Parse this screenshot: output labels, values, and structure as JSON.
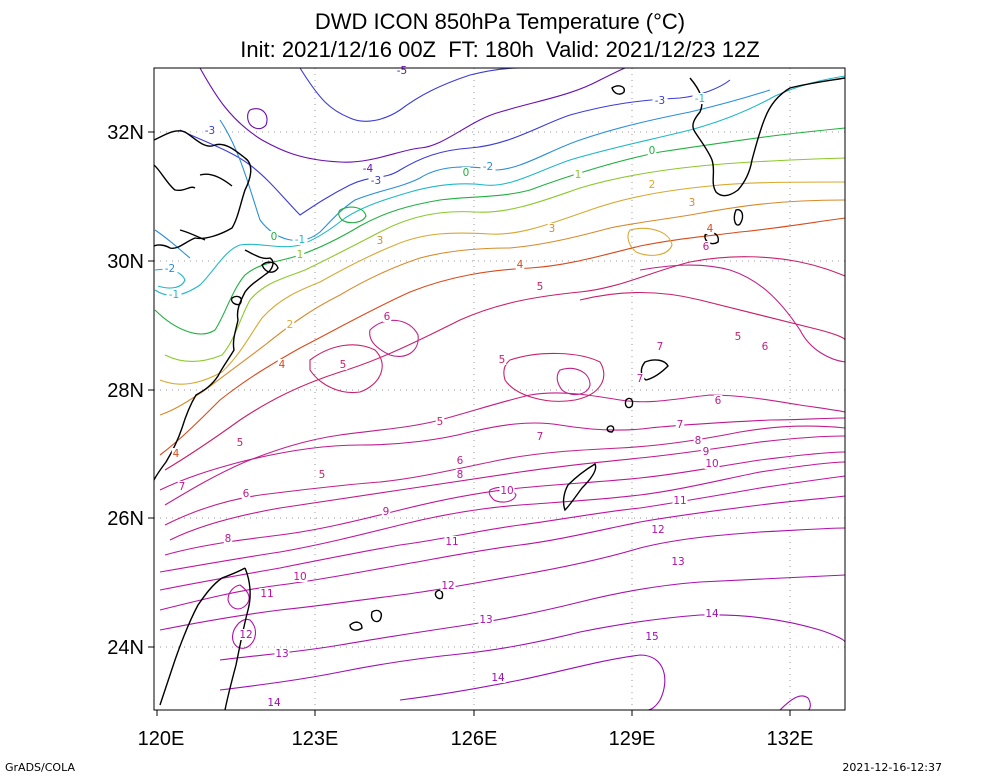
{
  "title_line1": "DWD ICON 850hPa Temperature (°C)",
  "title_line2": "Init: 2021/12/16 00Z  FT: 180h  Valid: 2021/12/23 12Z",
  "footer_left": "GrADS/COLA",
  "footer_right": "2021-12-16-12:37",
  "x_ticks": [
    "120E",
    "123E",
    "126E",
    "129E",
    "132E"
  ],
  "y_ticks": [
    "32N",
    "30N",
    "28N",
    "26N",
    "24N"
  ],
  "contour_levels": [
    -3,
    -2,
    -1,
    0,
    1,
    2,
    3,
    4,
    5,
    6,
    7,
    8,
    9,
    10,
    11,
    12,
    13,
    14,
    15
  ],
  "contour_colors": {
    "-4": "#6a0dad",
    "-3": "#3b3bd6",
    "-2": "#2a8fd8",
    "-1": "#1fb8c8",
    "0": "#20b040",
    "1": "#8cc82a",
    "2": "#d8a830",
    "3": "#d88a2a",
    "4": "#d84a1a",
    "5": "#c8206a",
    "6": "#c0208a",
    "7": "#c01890",
    "8": "#c0169a",
    "9": "#c0149e",
    "10": "#c012a6",
    "11": "#b810a8",
    "12": "#b010ac",
    "13": "#a810b0",
    "14": "#a00eb4",
    "15": "#9a0cb8"
  },
  "contour_labels": [
    {
      "t": "-5",
      "c": "-4"
    },
    {
      "t": "-3",
      "c": "-3"
    },
    {
      "t": "-3",
      "c": "-3"
    },
    {
      "t": "-4",
      "c": "-4"
    },
    {
      "t": "-3",
      "c": "-3"
    },
    {
      "t": "-2",
      "c": "-2"
    },
    {
      "t": "-1",
      "c": "-1"
    },
    {
      "t": "0",
      "c": "0"
    },
    {
      "t": "1",
      "c": "1"
    },
    {
      "t": "2",
      "c": "2"
    },
    {
      "t": "3",
      "c": "3"
    },
    {
      "t": "0",
      "c": "0"
    },
    {
      "t": "-1",
      "c": "-1"
    },
    {
      "t": "-2",
      "c": "-2"
    },
    {
      "t": "0",
      "c": "0"
    },
    {
      "t": "-1",
      "c": "-1"
    },
    {
      "t": "1",
      "c": "1"
    },
    {
      "t": "2",
      "c": "2"
    },
    {
      "t": "3",
      "c": "3"
    },
    {
      "t": "4",
      "c": "4"
    },
    {
      "t": "5",
      "c": "5"
    },
    {
      "t": "3",
      "c": "3"
    },
    {
      "t": "4",
      "c": "4"
    },
    {
      "t": "6",
      "c": "6"
    },
    {
      "t": "5",
      "c": "5"
    },
    {
      "t": "5",
      "c": "5"
    },
    {
      "t": "4",
      "c": "4"
    },
    {
      "t": "5",
      "c": "5"
    },
    {
      "t": "6",
      "c": "6"
    },
    {
      "t": "7",
      "c": "7"
    },
    {
      "t": "6",
      "c": "6"
    },
    {
      "t": "5",
      "c": "5"
    },
    {
      "t": "4",
      "c": "4"
    },
    {
      "t": "5",
      "c": "5"
    },
    {
      "t": "5",
      "c": "5"
    },
    {
      "t": "7",
      "c": "7"
    },
    {
      "t": "6",
      "c": "6"
    },
    {
      "t": "7",
      "c": "7"
    },
    {
      "t": "8",
      "c": "8"
    },
    {
      "t": "6",
      "c": "6"
    },
    {
      "t": "8",
      "c": "8"
    },
    {
      "t": "7",
      "c": "7"
    },
    {
      "t": "9",
      "c": "9"
    },
    {
      "t": "10",
      "c": "10"
    },
    {
      "t": "7",
      "c": "7"
    },
    {
      "t": "6",
      "c": "6"
    },
    {
      "t": "7",
      "c": "7"
    },
    {
      "t": "9",
      "c": "9"
    },
    {
      "t": "10",
      "c": "10"
    },
    {
      "t": "11",
      "c": "11"
    },
    {
      "t": "8",
      "c": "8"
    },
    {
      "t": "11",
      "c": "11"
    },
    {
      "t": "12",
      "c": "12"
    },
    {
      "t": "10",
      "c": "10"
    },
    {
      "t": "11",
      "c": "11"
    },
    {
      "t": "13",
      "c": "13"
    },
    {
      "t": "12",
      "c": "12"
    },
    {
      "t": "12",
      "c": "12"
    },
    {
      "t": "13",
      "c": "13"
    },
    {
      "t": "14",
      "c": "14"
    },
    {
      "t": "13",
      "c": "13"
    },
    {
      "t": "15",
      "c": "15"
    },
    {
      "t": "14",
      "c": "14"
    },
    {
      "t": "14",
      "c": "14"
    }
  ]
}
